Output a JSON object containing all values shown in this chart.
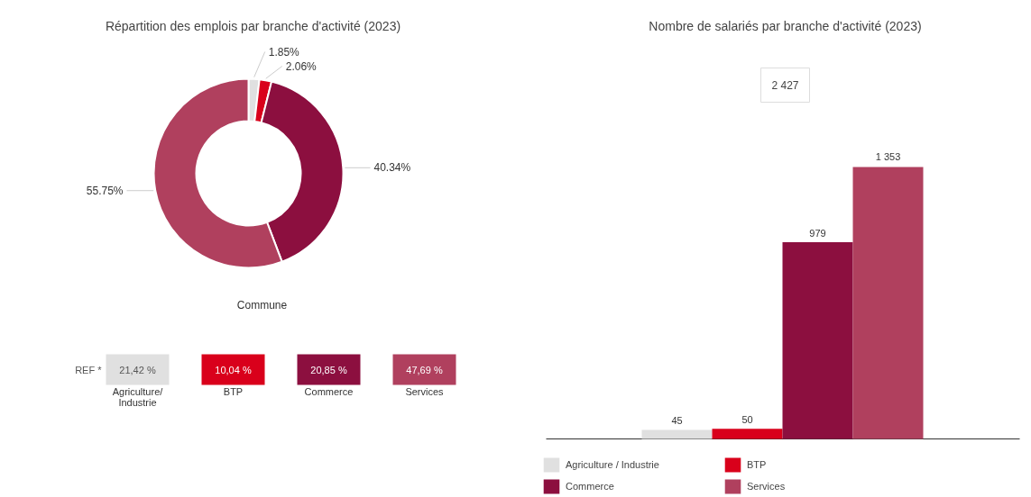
{
  "chart_data": [
    {
      "type": "donut",
      "title": "Répartition des emplois par branche d'activité (2023)",
      "categories": [
        null,
        null,
        null,
        null
      ],
      "values": [
        1.85,
        2.06,
        40.34,
        55.75
      ],
      "value_labels": [
        "1.85%",
        "2.06%",
        "40.34%",
        "55.75%"
      ],
      "colors": [
        "#e0e0e0",
        "#d9001b",
        "#8c0f3f",
        "#b0405e"
      ],
      "annotations": [
        "Commune"
      ]
    },
    {
      "type": "other",
      "title": "REF *",
      "categories": [
        "Agriculture/ Industrie",
        "BTP",
        "Commerce",
        "Services"
      ],
      "value_labels": [
        "21,42 %",
        "10,04 %",
        "20,85 %",
        "47,69 %"
      ]
    },
    {
      "type": "bar",
      "title": "Nombre de salariés par branche d'activité (2023)",
      "categories": [
        null
      ],
      "legend": "bottom",
      "annotations": [
        "2 427"
      ],
      "series": [
        {
          "name": "Agriculture / Industrie",
          "color": "#e0e0e0",
          "values": [
            45
          ],
          "value_labels": [
            "45"
          ]
        },
        {
          "name": "BTP",
          "color": "#d9001b",
          "values": [
            50
          ],
          "value_labels": [
            "50"
          ]
        },
        {
          "name": "Commerce",
          "color": "#8c0f3f",
          "values": [
            979
          ],
          "value_labels": [
            "979"
          ]
        },
        {
          "name": "Services",
          "color": "#b0405e",
          "values": [
            1353
          ],
          "value_labels": [
            "1 353"
          ]
        }
      ]
    }
  ]
}
